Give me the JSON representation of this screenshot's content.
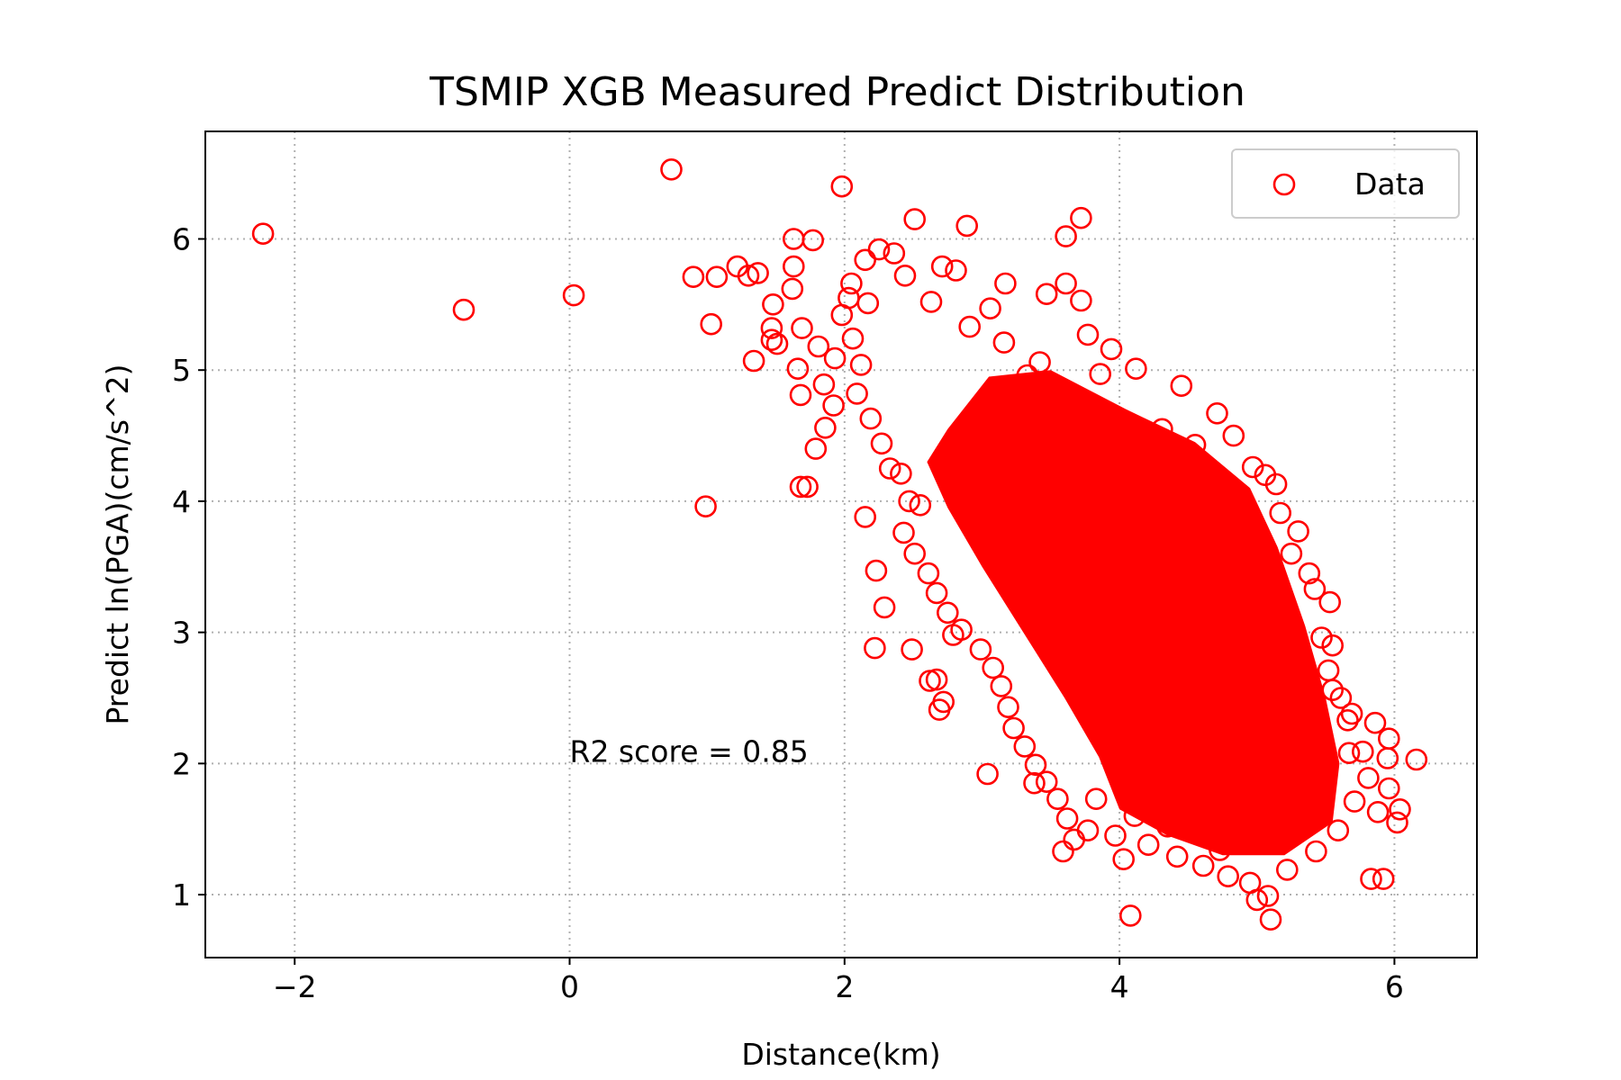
{
  "chart_data": {
    "type": "scatter",
    "title": "TSMIP XGB Measured Predict Distribution",
    "xlabel": "Distance(km)",
    "ylabel": "Predict ln(PGA)(cm/s^2)",
    "xlim": [
      -2.65,
      6.6
    ],
    "ylim": [
      0.52,
      6.82
    ],
    "xticks": [
      -2,
      0,
      2,
      4,
      6
    ],
    "yticks": [
      1,
      2,
      3,
      4,
      5,
      6
    ],
    "xtick_labels": [
      "−2",
      "0",
      "2",
      "4",
      "6"
    ],
    "ytick_labels": [
      "1",
      "2",
      "3",
      "4",
      "5",
      "6"
    ],
    "grid": true,
    "legend_position": "top-right",
    "annotation": "R2 score = 0.85",
    "annotation_at": {
      "x": 0.0,
      "y": 2.0
    },
    "series": [
      {
        "name": "Data",
        "color": "#ff0000",
        "marker": "hollow-circle",
        "points": [
          [
            -2.23,
            6.04
          ],
          [
            -0.77,
            5.46
          ],
          [
            0.03,
            5.57
          ],
          [
            0.74,
            6.53
          ],
          [
            1.98,
            6.4
          ],
          [
            0.99,
            3.96
          ],
          [
            0.9,
            5.71
          ],
          [
            1.07,
            5.71
          ],
          [
            1.22,
            5.79
          ],
          [
            1.3,
            5.72
          ],
          [
            1.37,
            5.74
          ],
          [
            1.03,
            5.35
          ],
          [
            1.34,
            5.07
          ],
          [
            1.48,
            5.5
          ],
          [
            1.47,
            5.32
          ],
          [
            1.47,
            5.23
          ],
          [
            1.51,
            5.2
          ],
          [
            1.63,
            6.0
          ],
          [
            1.63,
            5.79
          ],
          [
            1.77,
            5.99
          ],
          [
            1.62,
            5.62
          ],
          [
            1.69,
            5.32
          ],
          [
            1.66,
            5.01
          ],
          [
            1.68,
            4.81
          ],
          [
            1.79,
            4.4
          ],
          [
            1.68,
            4.11
          ],
          [
            1.73,
            4.11
          ],
          [
            1.85,
            4.89
          ],
          [
            1.86,
            4.56
          ],
          [
            1.92,
            4.73
          ],
          [
            2.15,
            3.88
          ],
          [
            2.23,
            3.47
          ],
          [
            2.29,
            3.19
          ],
          [
            2.22,
            2.88
          ],
          [
            2.49,
            2.87
          ],
          [
            2.62,
            2.63
          ],
          [
            2.67,
            2.64
          ],
          [
            2.72,
            2.47
          ],
          [
            2.69,
            2.41
          ],
          [
            3.04,
            1.92
          ],
          [
            3.38,
            1.85
          ],
          [
            3.59,
            1.33
          ],
          [
            3.67,
            1.42
          ],
          [
            4.03,
            1.27
          ],
          [
            4.08,
            0.84
          ],
          [
            5.1,
            0.81
          ],
          [
            5.08,
            0.99
          ],
          [
            5.0,
            0.96
          ],
          [
            5.83,
            1.12
          ],
          [
            5.92,
            1.12
          ],
          [
            5.88,
            1.63
          ],
          [
            5.96,
            1.81
          ],
          [
            6.02,
            1.55
          ],
          [
            6.04,
            1.65
          ],
          [
            6.16,
            2.03
          ],
          [
            5.96,
            2.19
          ],
          [
            5.86,
            2.31
          ],
          [
            5.95,
            2.04
          ],
          [
            5.77,
            2.09
          ],
          [
            5.69,
            2.38
          ],
          [
            5.66,
            2.33
          ],
          [
            5.55,
            2.56
          ],
          [
            5.55,
            2.9
          ],
          [
            5.53,
            3.23
          ],
          [
            5.38,
            3.45
          ],
          [
            5.3,
            3.77
          ],
          [
            5.17,
            3.91
          ],
          [
            5.06,
            4.2
          ],
          [
            4.83,
            4.5
          ],
          [
            4.71,
            4.67
          ],
          [
            4.45,
            4.88
          ],
          [
            4.12,
            5.01
          ],
          [
            3.94,
            5.16
          ],
          [
            3.77,
            5.27
          ],
          [
            3.72,
            5.53
          ],
          [
            3.72,
            6.16
          ],
          [
            3.61,
            6.02
          ],
          [
            3.61,
            5.66
          ],
          [
            3.47,
            5.58
          ],
          [
            3.17,
            5.66
          ],
          [
            3.06,
            5.47
          ],
          [
            2.89,
            6.1
          ],
          [
            2.81,
            5.76
          ],
          [
            2.71,
            5.79
          ],
          [
            2.51,
            6.15
          ],
          [
            2.36,
            5.89
          ],
          [
            2.25,
            5.92
          ],
          [
            2.15,
            5.84
          ],
          [
            2.05,
            5.66
          ],
          [
            2.03,
            5.55
          ],
          [
            1.98,
            5.42
          ],
          [
            2.06,
            5.24
          ],
          [
            2.12,
            5.04
          ],
          [
            2.09,
            4.82
          ],
          [
            2.19,
            4.63
          ],
          [
            2.27,
            4.44
          ],
          [
            2.41,
            4.21
          ],
          [
            2.47,
            4.0
          ],
          [
            2.43,
            3.76
          ],
          [
            2.51,
            3.6
          ],
          [
            2.61,
            3.45
          ],
          [
            2.67,
            3.3
          ],
          [
            2.75,
            3.15
          ],
          [
            2.85,
            3.02
          ],
          [
            2.79,
            2.98
          ],
          [
            2.99,
            2.87
          ],
          [
            3.08,
            2.73
          ],
          [
            3.14,
            2.59
          ],
          [
            3.19,
            2.43
          ],
          [
            3.23,
            2.27
          ],
          [
            3.31,
            2.13
          ],
          [
            3.39,
            1.99
          ],
          [
            3.47,
            1.86
          ],
          [
            3.55,
            1.73
          ],
          [
            3.62,
            1.58
          ],
          [
            3.77,
            1.49
          ],
          [
            3.97,
            1.45
          ],
          [
            4.21,
            1.38
          ],
          [
            4.42,
            1.29
          ],
          [
            4.61,
            1.22
          ],
          [
            4.79,
            1.14
          ],
          [
            4.95,
            1.09
          ],
          [
            5.22,
            1.19
          ],
          [
            5.43,
            1.33
          ],
          [
            5.59,
            1.49
          ],
          [
            5.71,
            1.71
          ],
          [
            5.81,
            1.89
          ],
          [
            3.16,
            5.21
          ],
          [
            2.91,
            5.33
          ],
          [
            2.63,
            5.52
          ],
          [
            3.33,
            4.96
          ],
          [
            4.02,
            4.62
          ],
          [
            4.31,
            4.55
          ],
          [
            4.55,
            4.43
          ],
          [
            4.97,
            4.26
          ],
          [
            5.14,
            4.13
          ],
          [
            5.25,
            3.6
          ],
          [
            5.42,
            3.33
          ],
          [
            5.47,
            2.96
          ],
          [
            5.52,
            2.71
          ],
          [
            5.61,
            2.5
          ],
          [
            4.11,
            1.6
          ],
          [
            3.83,
            1.73
          ],
          [
            4.35,
            1.52
          ],
          [
            2.55,
            3.97
          ],
          [
            2.33,
            4.25
          ],
          [
            1.93,
            5.09
          ],
          [
            1.81,
            5.18
          ],
          [
            2.17,
            5.51
          ],
          [
            2.44,
            5.72
          ],
          [
            3.86,
            4.97
          ],
          [
            3.42,
            5.06
          ],
          [
            4.73,
            1.34
          ],
          [
            5.3,
            1.59
          ],
          [
            5.67,
            2.08
          ]
        ]
      }
    ]
  },
  "cloud_colors": {
    "fill": "#ff0000"
  }
}
